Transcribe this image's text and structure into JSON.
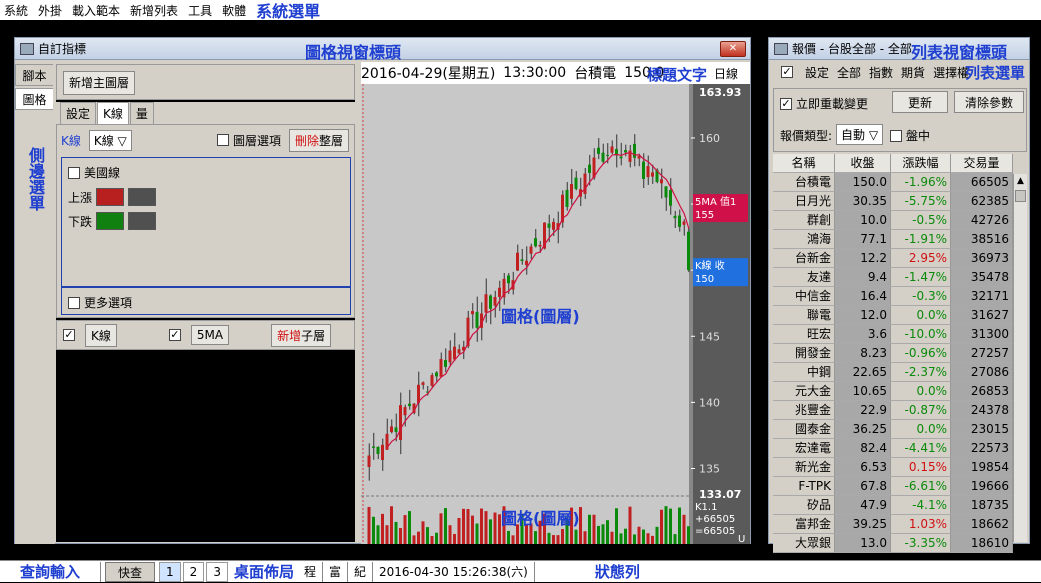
{
  "menubar": {
    "items": [
      "系統",
      "外掛",
      "載入範本",
      "新增列表",
      "工具",
      "軟體"
    ],
    "annotation": "系統選單"
  },
  "left_window": {
    "title": "自訂指標",
    "annotation": "圖格視窗標頭",
    "side_tabs": [
      "腳本",
      "圖格"
    ],
    "side_annotation": "側邊選單",
    "add_main_layer": "新增主圖層",
    "sub_tabs": [
      "設定",
      "K線",
      "量"
    ],
    "k_label": "K線",
    "k_select": "K線 ▽",
    "layer_option": "圖層選項",
    "delete_layer_red": "刪除",
    "delete_layer_rest": "整層",
    "us_line": "美國線",
    "rise": "上漲",
    "fall": "下跌",
    "more_options": "更多選項",
    "sub_layer_1": "K線",
    "sub_layer_2": "5MA",
    "add_sub_red": "新增",
    "add_sub_rest": "子層",
    "rise_color": "#b82020",
    "fall_color": "#108010"
  },
  "chart_header": {
    "date": "2016-04-29(星期五)",
    "time": "13:30:00",
    "stock": "台積電",
    "price": "150.0",
    "annotation": "標題文字",
    "period": "日線"
  },
  "chart_data": {
    "type": "candlestick",
    "y_ticks": [
      135,
      140,
      145,
      150,
      155,
      160
    ],
    "y_max_label": "163.93",
    "y_min_label": "133.07",
    "ylim": [
      133.07,
      163.93
    ],
    "ma_label": "5MA 值1",
    "ma_value": "155",
    "k_label": "K線 收",
    "k_value": "150",
    "vol_label": "K1.1",
    "vol_value1": "+66505",
    "vol_value2": "=66505",
    "vol_unit": "U",
    "annotation_main": "圖格(圖層)",
    "annotation_vol": "圖格(圖層)",
    "up_color": "#c02020",
    "down_color": "#0a8a0a",
    "ma_color": "#d01040"
  },
  "right_window": {
    "title": "報價 - 台股全部 - 全部",
    "annotation": "列表視窗標頭",
    "menu": [
      "設定",
      "全部",
      "指數",
      "期貨",
      "選擇權"
    ],
    "menu_annotation": "列表選單",
    "reload_label": "立即重載變更",
    "update_btn": "更新",
    "clear_btn": "清除參數",
    "quote_type_label": "報價類型:",
    "quote_type_value": "自動 ▽",
    "intraday_label": "盤中",
    "columns": [
      "名稱",
      "收盤",
      "漲跌幅",
      "交易量"
    ],
    "rows": [
      [
        "台積電",
        "150.0",
        "-1.96%",
        "66505"
      ],
      [
        "日月光",
        "30.35",
        "-5.75%",
        "62385"
      ],
      [
        "群創",
        "10.0",
        "-0.5%",
        "42726"
      ],
      [
        "鴻海",
        "77.1",
        "-1.91%",
        "38516"
      ],
      [
        "台新金",
        "12.2",
        "2.95%",
        "36973"
      ],
      [
        "友達",
        "9.4",
        "-1.47%",
        "35478"
      ],
      [
        "中信金",
        "16.4",
        "-0.3%",
        "32171"
      ],
      [
        "聯電",
        "12.0",
        "0.0%",
        "31627"
      ],
      [
        "旺宏",
        "3.6",
        "-10.0%",
        "31300"
      ],
      [
        "開發金",
        "8.23",
        "-0.96%",
        "27257"
      ],
      [
        "中鋼",
        "22.65",
        "-2.37%",
        "27086"
      ],
      [
        "元大金",
        "10.65",
        "0.0%",
        "26853"
      ],
      [
        "兆豐金",
        "22.9",
        "-0.87%",
        "24378"
      ],
      [
        "國泰金",
        "36.25",
        "0.0%",
        "23015"
      ],
      [
        "宏達電",
        "82.4",
        "-4.41%",
        "22573"
      ],
      [
        "新光金",
        "6.53",
        "0.15%",
        "19854"
      ],
      [
        "F-TPK",
        "67.8",
        "-6.61%",
        "19666"
      ],
      [
        "矽品",
        "47.9",
        "-4.1%",
        "18735"
      ],
      [
        "富邦金",
        "39.25",
        "1.03%",
        "18662"
      ],
      [
        "大眾銀",
        "13.0",
        "-3.35%",
        "18610"
      ]
    ]
  },
  "statusbar": {
    "query_annotation": "查詢輸入",
    "quick_btn": "快查",
    "pages": [
      "1",
      "2",
      "3"
    ],
    "desktop_annotation": "桌面佈局",
    "layout_chars": [
      "程",
      "富",
      "紀"
    ],
    "datetime": "2016-04-30 15:26:38(六)",
    "status_annotation": "狀態列"
  }
}
